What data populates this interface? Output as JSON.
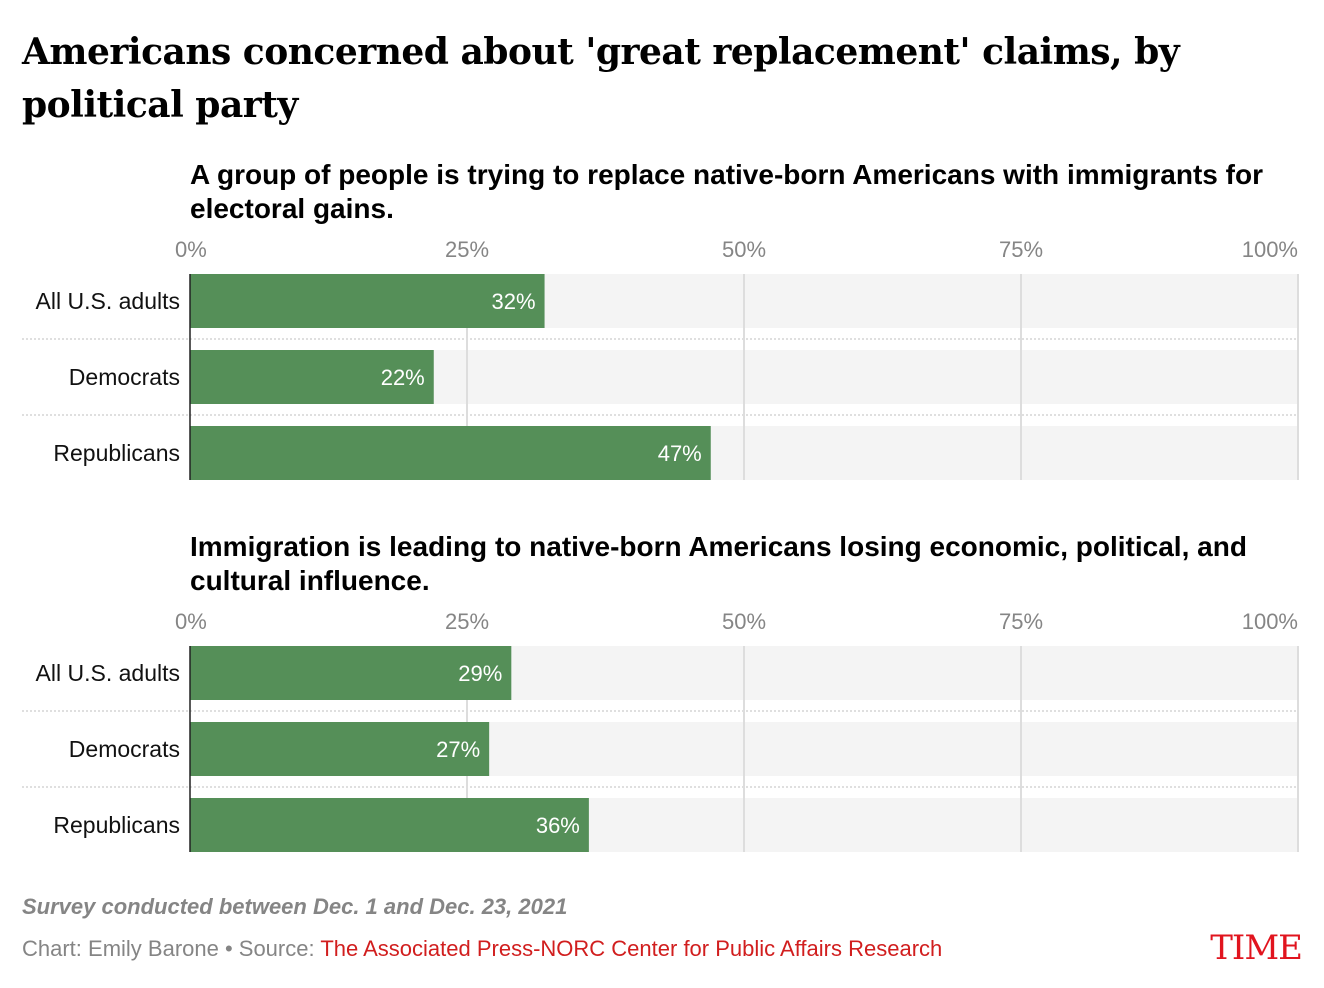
{
  "title": "Americans concerned about 'great replacement' claims, by political party",
  "colors": {
    "bar": "#558f58",
    "bar_highlight": "#98b197",
    "track": "#f4f4f4",
    "grid": "#dddddd",
    "tick_label": "#858585",
    "source_link": "#d11e1e",
    "logo": "#e1141e"
  },
  "axis_ticks": [
    "0%",
    "25%",
    "50%",
    "75%",
    "100%"
  ],
  "chart_data": [
    {
      "type": "bar",
      "orientation": "horizontal",
      "title": "A group of people is trying to replace native-born Americans with immigrants for electoral gains.",
      "categories": [
        "All U.S. adults",
        "Democrats",
        "Republicans"
      ],
      "values": [
        32,
        22,
        47
      ],
      "value_labels": [
        "32%",
        "22%",
        "47%"
      ],
      "xlim": [
        0,
        100
      ],
      "grid": true
    },
    {
      "type": "bar",
      "orientation": "horizontal",
      "title": "Immigration is leading to native-born Americans losing economic, political, and cultural influence.",
      "categories": [
        "All U.S. adults",
        "Democrats",
        "Republicans"
      ],
      "values": [
        29,
        27,
        36
      ],
      "value_labels": [
        "29%",
        "27%",
        "36%"
      ],
      "xlim": [
        0,
        100
      ],
      "grid": true
    }
  ],
  "footer": {
    "note": "Survey conducted between Dec. 1 and Dec. 23, 2021",
    "credit_prefix": "Chart: Emily Barone • Source: ",
    "source_name": "The Associated Press-NORC Center for Public Affairs Research",
    "logo_text": "TIME"
  }
}
